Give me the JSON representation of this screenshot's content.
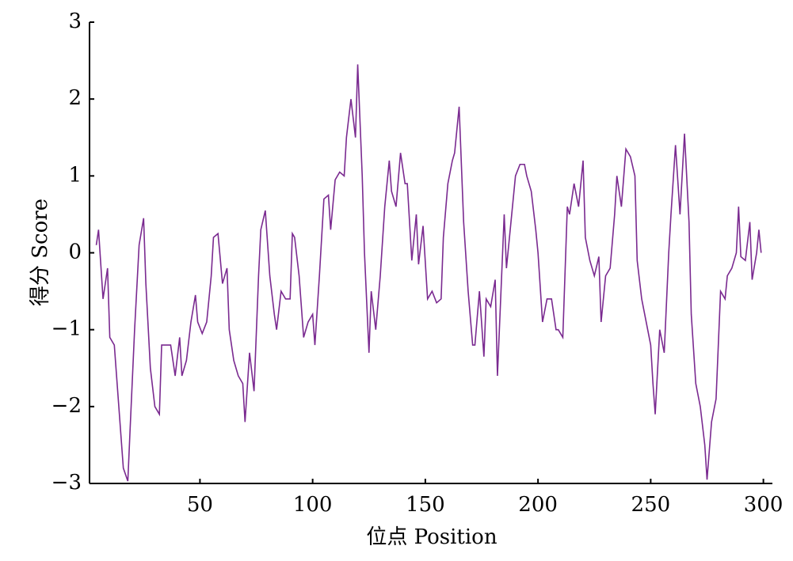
{
  "chart_data": {
    "type": "line",
    "xlabel": "位点 Position",
    "ylabel": "得分 Score",
    "xlim": [
      1,
      304
    ],
    "xticks": [
      50,
      100,
      150,
      200,
      250,
      300
    ],
    "ylim": [
      -3,
      3
    ],
    "yticks": [
      {
        "value": -3,
        "label": "−3"
      },
      {
        "value": -2,
        "label": "−2"
      },
      {
        "value": -1,
        "label": "−1"
      },
      0,
      1,
      2,
      3
    ],
    "grid": false,
    "series": [
      {
        "color": "#7a2a90",
        "x": [
          4,
          5,
          7,
          9,
          10,
          12,
          14,
          16,
          18,
          19,
          21,
          23,
          25,
          26,
          28,
          30,
          32,
          33,
          37,
          39,
          41,
          42,
          44,
          46,
          48,
          49,
          51,
          53,
          55,
          56,
          58,
          60,
          62,
          63,
          65,
          67,
          69,
          70,
          72,
          74,
          76,
          77,
          79,
          81,
          83,
          84,
          86,
          88,
          90,
          91,
          92,
          94,
          96,
          98,
          100,
          101,
          103,
          105,
          107,
          108,
          110,
          112,
          114,
          115,
          117,
          119,
          120,
          122,
          123,
          125,
          126,
          128,
          130,
          132,
          134,
          135,
          137,
          139,
          141,
          142,
          144,
          146,
          147,
          149,
          151,
          153,
          155,
          157,
          158,
          160,
          162,
          163,
          165,
          167,
          169,
          171,
          172,
          174,
          176,
          177,
          179,
          181,
          182,
          185,
          186,
          188,
          190,
          192,
          194,
          195,
          197,
          199,
          200,
          202,
          204,
          206,
          208,
          209,
          211,
          213,
          214,
          216,
          218,
          220,
          221,
          223,
          225,
          227,
          228,
          230,
          232,
          234,
          235,
          237,
          239,
          241,
          243,
          244,
          246,
          248,
          250,
          251,
          252,
          254,
          256,
          258,
          259,
          261,
          263,
          265,
          267,
          268,
          270,
          272,
          274,
          275,
          277,
          279,
          281,
          283,
          284,
          286,
          288,
          289,
          290,
          292,
          294,
          295,
          297,
          298,
          299
        ],
        "values": [
          0.1,
          0.3,
          -0.6,
          -0.2,
          -1.1,
          -1.2,
          -2.0,
          -2.8,
          -2.97,
          -2.3,
          -1.0,
          0.1,
          0.45,
          -0.4,
          -1.5,
          -2.0,
          -2.1,
          -1.2,
          -1.2,
          -1.6,
          -1.1,
          -1.6,
          -1.4,
          -0.9,
          -0.55,
          -0.9,
          -1.05,
          -0.9,
          -0.3,
          0.2,
          0.25,
          -0.4,
          -0.2,
          -1.0,
          -1.4,
          -1.6,
          -1.7,
          -2.2,
          -1.3,
          -1.8,
          -0.3,
          0.3,
          0.55,
          -0.3,
          -0.8,
          -1.0,
          -0.5,
          -0.6,
          -0.6,
          0.25,
          0.2,
          -0.3,
          -1.1,
          -0.9,
          -0.8,
          -1.2,
          -0.3,
          0.7,
          0.75,
          0.3,
          0.95,
          1.05,
          1.0,
          1.5,
          2.0,
          1.5,
          2.45,
          1.0,
          0.0,
          -1.3,
          -0.5,
          -1.0,
          -0.3,
          0.6,
          1.2,
          0.8,
          0.6,
          1.3,
          0.9,
          0.9,
          -0.1,
          0.5,
          -0.15,
          0.35,
          -0.6,
          -0.5,
          -0.65,
          -0.6,
          0.2,
          0.9,
          1.2,
          1.3,
          1.9,
          0.4,
          -0.5,
          -1.2,
          -1.2,
          -0.5,
          -1.35,
          -0.6,
          -0.7,
          -0.35,
          -1.6,
          0.5,
          -0.2,
          0.4,
          1.0,
          1.15,
          1.15,
          1.0,
          0.8,
          0.3,
          0.0,
          -0.9,
          -0.6,
          -0.6,
          -1.0,
          -1.0,
          -1.1,
          0.6,
          0.5,
          0.9,
          0.6,
          1.2,
          0.2,
          -0.1,
          -0.3,
          -0.05,
          -0.9,
          -0.3,
          -0.2,
          0.5,
          1.0,
          0.6,
          1.35,
          1.25,
          1.0,
          -0.1,
          -0.6,
          -0.9,
          -1.2,
          -1.7,
          -2.1,
          -1.0,
          -1.3,
          0.0,
          0.5,
          1.4,
          0.5,
          1.55,
          0.4,
          -0.8,
          -1.7,
          -2.0,
          -2.5,
          -2.95,
          -2.2,
          -1.9,
          -0.5,
          -0.6,
          -0.3,
          -0.2,
          0.0,
          0.6,
          -0.05,
          -0.1,
          0.4,
          -0.35,
          0.0,
          0.3,
          0.0
        ]
      }
    ]
  }
}
